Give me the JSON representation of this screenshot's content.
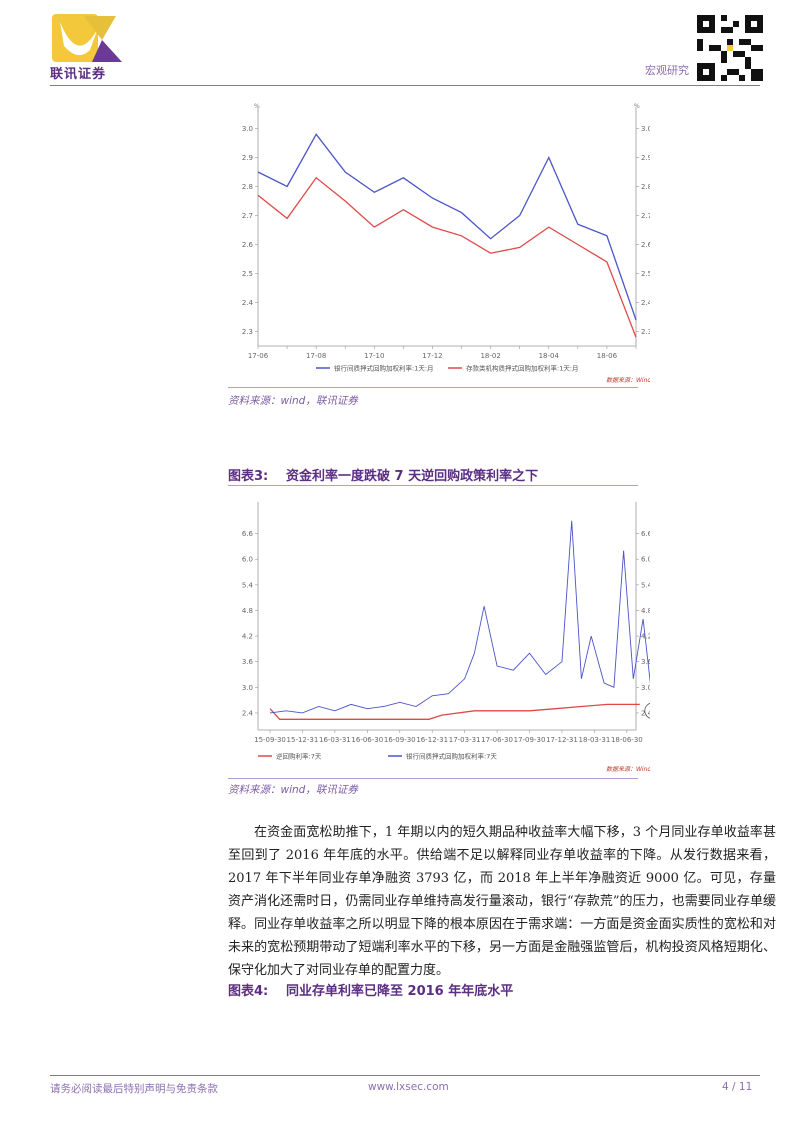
{
  "header": {
    "logo_text": "联讯证券",
    "section": "宏观研究"
  },
  "figure_top": {
    "source": "资料来源：wind，联讯证券",
    "wind_label": "数据来源：Wind",
    "chart_data": {
      "type": "line",
      "x": [
        "17-06",
        "17-07",
        "17-08",
        "17-09",
        "17-10",
        "17-11",
        "17-12",
        "18-01",
        "18-02",
        "18-03",
        "18-04",
        "18-05",
        "18-06",
        "18-07"
      ],
      "tick_labels": [
        "17-06",
        "17-08",
        "17-10",
        "17-12",
        "18-02",
        "18-04",
        "18-06"
      ],
      "unit": "%",
      "ylim": [
        2.25,
        3.05
      ],
      "yticks": [
        "3.0",
        "2.9",
        "2.8",
        "2.7",
        "2.6",
        "2.5",
        "2.4",
        "2.3"
      ],
      "series": [
        {
          "name": "银行间质押式回购加权利率:1天:月",
          "color": "#4a55c8",
          "values": [
            2.85,
            2.8,
            2.98,
            2.85,
            2.78,
            2.83,
            2.76,
            2.71,
            2.62,
            2.7,
            2.9,
            2.67,
            2.63,
            2.34
          ]
        },
        {
          "name": "存款类机构质押式回购加权利率:1天:月",
          "color": "#e04848",
          "values": [
            2.77,
            2.69,
            2.83,
            2.75,
            2.66,
            2.72,
            2.66,
            2.63,
            2.57,
            2.59,
            2.66,
            2.6,
            2.54,
            2.28
          ]
        }
      ]
    }
  },
  "figure3": {
    "label": "图表3:",
    "title": "资金利率一度跌破 7 天逆回购政策利率之下",
    "source": "资料来源：wind，联讯证券",
    "wind_label": "数据来源：Wind",
    "chart_data": {
      "type": "line",
      "tick_labels": [
        "15-09-30",
        "15-12-31",
        "16-03-31",
        "16-06-30",
        "16-09-30",
        "16-12-31",
        "17-03-31",
        "17-06-30",
        "17-09-30",
        "17-12-31",
        "18-03-31",
        "18-06-30"
      ],
      "ylim": [
        2.0,
        7.2
      ],
      "yticks": [
        "6.6",
        "6.0",
        "5.4",
        "4.8",
        "4.2",
        "3.6",
        "3.0",
        "2.4"
      ],
      "series": [
        {
          "name": "逆回购利率:7天",
          "color": "#e04848",
          "x_index": [
            0,
            0.3,
            3.9,
            4.9,
            5.3,
            6.3,
            8.0,
            8.8,
            9.6,
            10.4,
            10.8,
            11.4
          ],
          "values": [
            2.5,
            2.25,
            2.25,
            2.25,
            2.35,
            2.45,
            2.45,
            2.5,
            2.55,
            2.6,
            2.6,
            2.6
          ]
        },
        {
          "name": "银行间质押式回购加权利率:7天",
          "color": "#4a55c8",
          "x_index": [
            0,
            0.5,
            1.0,
            1.5,
            2.0,
            2.5,
            3.0,
            3.5,
            4.0,
            4.5,
            5.0,
            5.5,
            6.0,
            6.3,
            6.6,
            7.0,
            7.5,
            8.0,
            8.5,
            9.0,
            9.3,
            9.6,
            9.9,
            10.3,
            10.6,
            10.9,
            11.2,
            11.5,
            11.8
          ],
          "values": [
            2.4,
            2.45,
            2.4,
            2.55,
            2.45,
            2.6,
            2.5,
            2.55,
            2.65,
            2.55,
            2.8,
            2.85,
            3.2,
            3.8,
            4.9,
            3.5,
            3.4,
            3.8,
            3.3,
            3.6,
            6.9,
            3.2,
            4.2,
            3.1,
            3.0,
            6.2,
            3.2,
            4.6,
            2.6
          ]
        }
      ]
    }
  },
  "paragraph": "在资金面宽松助推下，1 年期以内的短久期品种收益率大幅下移，3 个月同业存单收益率甚至回到了 2016 年年底的水平。供给端不足以解释同业存单收益率的下降。从发行数据来看，2017 年下半年同业存单净融资 3793 亿，而 2018 年上半年净融资近 9000 亿。可见，存量资产消化还需时日，仍需同业存单维持高发行量滚动，银行“存款荒”的压力，也需要同业存单缓释。同业存单收益率之所以明显下降的根本原因在于需求端：一方面是资金面实质性的宽松和对未来的宽松预期带动了短端利率水平的下移，另一方面是金融强监管后，机构投资风格短期化、保守化加大了对同业存单的配置力度。",
  "figure4": {
    "label": "图表4:",
    "title": "同业存单利率已降至 2016 年年底水平"
  },
  "footer": {
    "disclaimer": "请务必阅读最后特别声明与免责条款",
    "url": "www.lxsec.com",
    "page": "4 / 11"
  }
}
